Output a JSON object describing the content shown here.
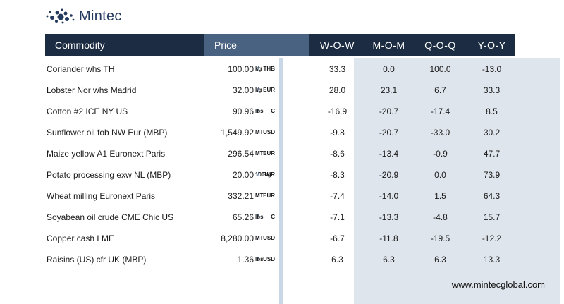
{
  "brand": {
    "name": "Mintec"
  },
  "table": {
    "headers": {
      "commodity": "Commodity",
      "price": "Price",
      "wow": "W-O-W",
      "mom": "M-O-M",
      "qoq": "Q-O-Q",
      "yoy": "Y-O-Y"
    },
    "rows": [
      {
        "name": "Coriander whs TH",
        "price": "100.00",
        "currency": "THB",
        "unit": "kg",
        "wow": "33.3",
        "mom": "0.0",
        "qoq": "100.0",
        "yoy": "-13.0"
      },
      {
        "name": "Lobster Nor whs Madrid",
        "price": "32.00",
        "currency": "EUR",
        "unit": "kg",
        "wow": "28.0",
        "mom": "23.1",
        "qoq": "6.7",
        "yoy": "33.3"
      },
      {
        "name": "Cotton #2 ICE NY US",
        "price": "90.96",
        "currency": "C",
        "unit": "lbs",
        "wow": "-16.9",
        "mom": "-20.7",
        "qoq": "-17.4",
        "yoy": "8.5"
      },
      {
        "name": "Sunflower oil fob NW Eur (MBP)",
        "price": "1,549.92",
        "currency": "USD",
        "unit": "MT",
        "wow": "-9.8",
        "mom": "-20.7",
        "qoq": "-33.0",
        "yoy": "30.2"
      },
      {
        "name": "Maize yellow A1 Euronext Paris",
        "price": "296.54",
        "currency": "EUR",
        "unit": "MT",
        "wow": "-8.6",
        "mom": "-13.4",
        "qoq": "-0.9",
        "yoy": "47.7"
      },
      {
        "name": "Potato processing exw NL (MBP)",
        "price": "20.00",
        "currency": "EUR",
        "unit": "100kg",
        "wow": "-8.3",
        "mom": "-20.9",
        "qoq": "0.0",
        "yoy": "73.9"
      },
      {
        "name": "Wheat milling Euronext  Paris",
        "price": "332.21",
        "currency": "EUR",
        "unit": "MT",
        "wow": "-7.4",
        "mom": "-14.0",
        "qoq": "1.5",
        "yoy": "64.3"
      },
      {
        "name": "Soyabean oil crude CME Chic US",
        "price": "65.26",
        "currency": "C",
        "unit": "lbs",
        "wow": "-7.1",
        "mom": "-13.3",
        "qoq": "-4.8",
        "yoy": "15.7"
      },
      {
        "name": "Copper cash LME",
        "price": "8,280.00",
        "currency": "USD",
        "unit": "MT",
        "wow": "-6.7",
        "mom": "-11.8",
        "qoq": "-19.5",
        "yoy": "-12.2"
      },
      {
        "name": "Raisins (US) cfr UK (MBP)",
        "price": "1.36",
        "currency": "USD",
        "unit": "lbs",
        "wow": "6.3",
        "mom": "6.3",
        "qoq": "6.3",
        "yoy": "13.3"
      }
    ]
  },
  "footer": {
    "url": "www.mintecglobal.com"
  },
  "colors": {
    "header_bg": "#1c2d43",
    "price_header_bg": "#4a6281",
    "change_columns_bg": "#dfe5ec",
    "unit_slash": "#3a5b86"
  }
}
